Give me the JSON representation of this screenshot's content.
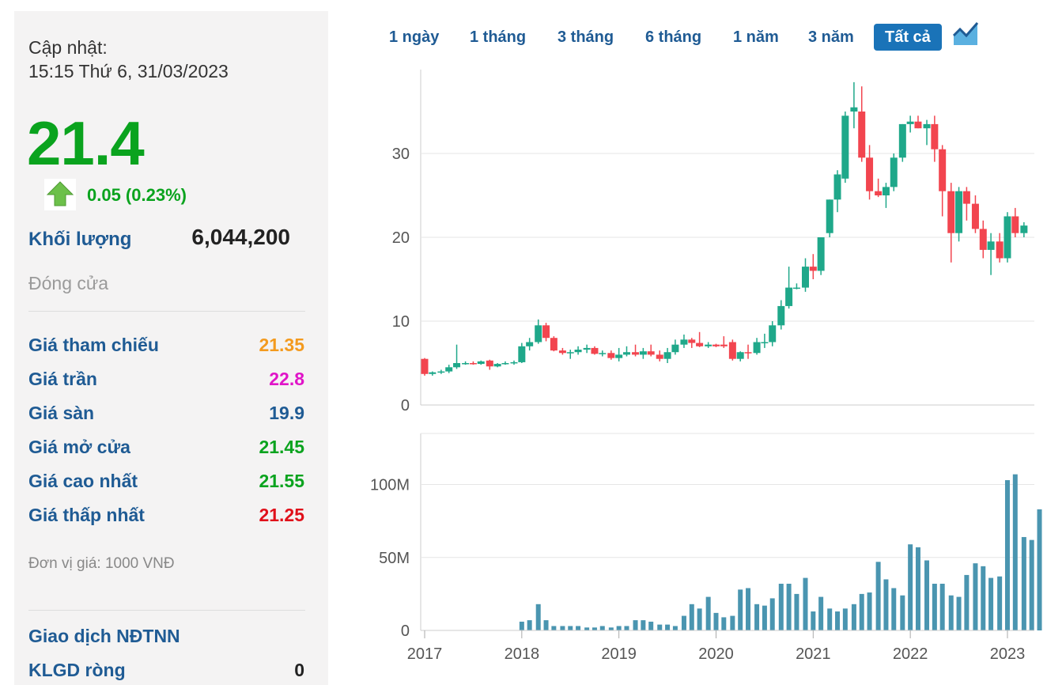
{
  "info": {
    "update_label": "Cập nhật:",
    "update_time": "15:15 Thứ 6, 31/03/2023",
    "price": "21.4",
    "change": "0.05 (0.23%)",
    "volume_label": "Khối lượng",
    "volume_value": "6,044,200",
    "status": "Đóng cửa",
    "rows": [
      {
        "label": "Giá tham chiếu",
        "value": "21.35",
        "color": "#f39a1e"
      },
      {
        "label": "Giá trần",
        "value": "22.8",
        "color": "#e014c8"
      },
      {
        "label": "Giá sàn",
        "value": "19.9",
        "color": "#1f5b94"
      },
      {
        "label": "Giá mở cửa",
        "value": "21.45",
        "color": "#0aa31e"
      },
      {
        "label": "Giá cao nhất",
        "value": "21.55",
        "color": "#0aa31e"
      },
      {
        "label": "Giá thấp nhất",
        "value": "21.25",
        "color": "#e0101a"
      }
    ],
    "unit_note": "Đơn vị giá: 1000 VNĐ",
    "foreign_title": "Giao dịch NĐTNN",
    "foreign_net_label": "KLGD ròng",
    "foreign_net_value": "0"
  },
  "tabs": [
    "1 ngày",
    "1 tháng",
    "3 tháng",
    "6 tháng",
    "1 năm",
    "3 năm",
    "Tất cả"
  ],
  "active_tab": "Tất cả",
  "colors": {
    "up": "#1fa88a",
    "down": "#f2454f",
    "volume": "#4a95b0",
    "grid": "#e6e6e6"
  },
  "chart_data": {
    "type": "candlestick",
    "price_axis": {
      "ticks": [
        0,
        10,
        20,
        30
      ],
      "ylim": [
        0,
        40
      ]
    },
    "volume_axis": {
      "ticks": [
        "0",
        "50M",
        "100M"
      ],
      "tick_values": [
        0,
        50,
        100
      ],
      "ylim": [
        0,
        135
      ],
      "unit": "M"
    },
    "x_axis": {
      "ticks": [
        "2017",
        "2018",
        "2019",
        "2020",
        "2021",
        "2022",
        "2023"
      ],
      "range": [
        2017,
        2023.22
      ]
    },
    "candles": [
      {
        "t": 2017.0,
        "o": 5.5,
        "h": 5.6,
        "l": 3.5,
        "c": 3.7
      },
      {
        "t": 2017.08,
        "o": 3.7,
        "h": 4.0,
        "l": 3.5,
        "c": 3.9
      },
      {
        "t": 2017.17,
        "o": 3.9,
        "h": 4.2,
        "l": 3.7,
        "c": 4.0
      },
      {
        "t": 2017.25,
        "o": 4.0,
        "h": 4.8,
        "l": 3.8,
        "c": 4.5
      },
      {
        "t": 2017.33,
        "o": 4.5,
        "h": 7.2,
        "l": 4.3,
        "c": 5.0
      },
      {
        "t": 2017.42,
        "o": 5.0,
        "h": 5.2,
        "l": 4.8,
        "c": 5.0
      },
      {
        "t": 2017.5,
        "o": 5.0,
        "h": 5.2,
        "l": 4.8,
        "c": 4.9
      },
      {
        "t": 2017.58,
        "o": 4.9,
        "h": 5.3,
        "l": 4.8,
        "c": 5.2
      },
      {
        "t": 2017.67,
        "o": 5.3,
        "h": 5.4,
        "l": 4.2,
        "c": 4.6
      },
      {
        "t": 2017.75,
        "o": 4.6,
        "h": 5.0,
        "l": 4.5,
        "c": 4.9
      },
      {
        "t": 2017.83,
        "o": 4.9,
        "h": 5.2,
        "l": 4.8,
        "c": 5.0
      },
      {
        "t": 2017.92,
        "o": 5.0,
        "h": 5.3,
        "l": 4.8,
        "c": 5.1
      },
      {
        "t": 2018.0,
        "o": 5.1,
        "h": 7.4,
        "l": 5.0,
        "c": 7.0
      },
      {
        "t": 2018.08,
        "o": 7.0,
        "h": 8.0,
        "l": 6.5,
        "c": 7.5
      },
      {
        "t": 2018.17,
        "o": 7.5,
        "h": 10.2,
        "l": 7.3,
        "c": 9.5
      },
      {
        "t": 2018.25,
        "o": 9.5,
        "h": 9.8,
        "l": 7.6,
        "c": 8.0
      },
      {
        "t": 2018.33,
        "o": 8.0,
        "h": 8.2,
        "l": 6.4,
        "c": 6.5
      },
      {
        "t": 2018.42,
        "o": 6.5,
        "h": 6.8,
        "l": 6.0,
        "c": 6.2
      },
      {
        "t": 2018.5,
        "o": 6.2,
        "h": 6.6,
        "l": 5.5,
        "c": 6.3
      },
      {
        "t": 2018.58,
        "o": 6.3,
        "h": 7.0,
        "l": 6.0,
        "c": 6.6
      },
      {
        "t": 2018.67,
        "o": 6.6,
        "h": 7.2,
        "l": 6.2,
        "c": 6.8
      },
      {
        "t": 2018.75,
        "o": 6.8,
        "h": 7.0,
        "l": 6.0,
        "c": 6.1
      },
      {
        "t": 2018.83,
        "o": 6.1,
        "h": 6.5,
        "l": 5.8,
        "c": 6.2
      },
      {
        "t": 2018.92,
        "o": 6.2,
        "h": 6.5,
        "l": 5.4,
        "c": 5.6
      },
      {
        "t": 2019.0,
        "o": 5.6,
        "h": 6.8,
        "l": 5.2,
        "c": 6.0
      },
      {
        "t": 2019.08,
        "o": 6.0,
        "h": 7.0,
        "l": 5.8,
        "c": 6.3
      },
      {
        "t": 2019.17,
        "o": 6.3,
        "h": 7.2,
        "l": 5.8,
        "c": 6.0
      },
      {
        "t": 2019.25,
        "o": 6.0,
        "h": 6.8,
        "l": 5.5,
        "c": 6.4
      },
      {
        "t": 2019.33,
        "o": 6.4,
        "h": 7.2,
        "l": 5.8,
        "c": 6.0
      },
      {
        "t": 2019.42,
        "o": 6.0,
        "h": 6.5,
        "l": 5.2,
        "c": 5.5
      },
      {
        "t": 2019.5,
        "o": 5.5,
        "h": 6.8,
        "l": 5.0,
        "c": 6.3
      },
      {
        "t": 2019.58,
        "o": 6.3,
        "h": 7.8,
        "l": 6.0,
        "c": 7.2
      },
      {
        "t": 2019.67,
        "o": 7.2,
        "h": 8.4,
        "l": 6.8,
        "c": 7.8
      },
      {
        "t": 2019.75,
        "o": 7.8,
        "h": 8.0,
        "l": 6.8,
        "c": 7.4
      },
      {
        "t": 2019.83,
        "o": 7.4,
        "h": 8.7,
        "l": 6.9,
        "c": 7.0
      },
      {
        "t": 2019.92,
        "o": 7.0,
        "h": 7.5,
        "l": 6.8,
        "c": 7.2
      },
      {
        "t": 2020.0,
        "o": 7.2,
        "h": 7.3,
        "l": 6.9,
        "c": 7.0
      },
      {
        "t": 2020.08,
        "o": 7.2,
        "h": 8.2,
        "l": 6.8,
        "c": 7.0
      },
      {
        "t": 2020.17,
        "o": 7.5,
        "h": 7.8,
        "l": 5.3,
        "c": 5.5
      },
      {
        "t": 2020.25,
        "o": 5.5,
        "h": 6.4,
        "l": 5.2,
        "c": 6.3
      },
      {
        "t": 2020.33,
        "o": 6.3,
        "h": 7.2,
        "l": 5.5,
        "c": 6.2
      },
      {
        "t": 2020.42,
        "o": 6.2,
        "h": 8.0,
        "l": 6.0,
        "c": 7.5
      },
      {
        "t": 2020.5,
        "o": 7.5,
        "h": 8.5,
        "l": 6.8,
        "c": 7.5
      },
      {
        "t": 2020.58,
        "o": 7.5,
        "h": 10.0,
        "l": 7.0,
        "c": 9.5
      },
      {
        "t": 2020.67,
        "o": 9.5,
        "h": 12.5,
        "l": 9.0,
        "c": 11.8
      },
      {
        "t": 2020.75,
        "o": 11.8,
        "h": 16.5,
        "l": 11.5,
        "c": 14.0
      },
      {
        "t": 2020.83,
        "o": 14.0,
        "h": 14.5,
        "l": 13.8,
        "c": 14.0
      },
      {
        "t": 2020.92,
        "o": 14.0,
        "h": 17.5,
        "l": 13.5,
        "c": 16.5
      },
      {
        "t": 2021.0,
        "o": 16.5,
        "h": 18.0,
        "l": 15.0,
        "c": 16.0
      },
      {
        "t": 2021.08,
        "o": 16.0,
        "h": 20.0,
        "l": 15.5,
        "c": 20.0
      },
      {
        "t": 2021.17,
        "o": 20.5,
        "h": 24.5,
        "l": 20.0,
        "c": 24.5
      },
      {
        "t": 2021.25,
        "o": 24.5,
        "h": 28.0,
        "l": 23.0,
        "c": 27.5
      },
      {
        "t": 2021.33,
        "o": 27.0,
        "h": 35.0,
        "l": 26.5,
        "c": 34.5
      },
      {
        "t": 2021.42,
        "o": 35.0,
        "h": 38.5,
        "l": 33.0,
        "c": 35.5
      },
      {
        "t": 2021.5,
        "o": 35.0,
        "h": 38.0,
        "l": 29.0,
        "c": 29.5
      },
      {
        "t": 2021.58,
        "o": 29.5,
        "h": 31.0,
        "l": 24.5,
        "c": 25.5
      },
      {
        "t": 2021.67,
        "o": 25.5,
        "h": 27.0,
        "l": 24.8,
        "c": 25.0
      },
      {
        "t": 2021.75,
        "o": 25.0,
        "h": 26.5,
        "l": 23.5,
        "c": 26.0
      },
      {
        "t": 2021.83,
        "o": 26.0,
        "h": 30.0,
        "l": 25.5,
        "c": 29.5
      },
      {
        "t": 2021.92,
        "o": 29.5,
        "h": 33.5,
        "l": 29.0,
        "c": 33.5
      },
      {
        "t": 2022.0,
        "o": 33.5,
        "h": 34.5,
        "l": 32.5,
        "c": 33.8
      },
      {
        "t": 2022.08,
        "o": 33.8,
        "h": 34.5,
        "l": 33.0,
        "c": 33.0
      },
      {
        "t": 2022.17,
        "o": 33.0,
        "h": 34.0,
        "l": 31.0,
        "c": 33.5
      },
      {
        "t": 2022.25,
        "o": 33.5,
        "h": 34.5,
        "l": 29.0,
        "c": 30.5
      },
      {
        "t": 2022.33,
        "o": 30.5,
        "h": 31.0,
        "l": 22.5,
        "c": 25.5
      },
      {
        "t": 2022.42,
        "o": 25.5,
        "h": 26.5,
        "l": 17.0,
        "c": 20.5
      },
      {
        "t": 2022.5,
        "o": 20.5,
        "h": 26.0,
        "l": 19.5,
        "c": 25.5
      },
      {
        "t": 2022.58,
        "o": 25.5,
        "h": 26.0,
        "l": 22.0,
        "c": 24.0
      },
      {
        "t": 2022.67,
        "o": 24.0,
        "h": 25.0,
        "l": 20.5,
        "c": 21.0
      },
      {
        "t": 2022.75,
        "o": 21.0,
        "h": 22.0,
        "l": 17.5,
        "c": 18.5
      },
      {
        "t": 2022.83,
        "o": 18.5,
        "h": 20.5,
        "l": 15.5,
        "c": 19.5
      },
      {
        "t": 2022.92,
        "o": 19.5,
        "h": 20.5,
        "l": 17.0,
        "c": 17.5
      },
      {
        "t": 2023.0,
        "o": 17.5,
        "h": 23.0,
        "l": 17.0,
        "c": 22.5
      },
      {
        "t": 2023.08,
        "o": 22.5,
        "h": 23.5,
        "l": 20.0,
        "c": 20.5
      },
      {
        "t": 2023.17,
        "o": 20.5,
        "h": 21.8,
        "l": 20.0,
        "c": 21.4
      }
    ],
    "volume": [
      {
        "t": 2018.0,
        "v": 6
      },
      {
        "t": 2018.08,
        "v": 7
      },
      {
        "t": 2018.17,
        "v": 18
      },
      {
        "t": 2018.25,
        "v": 7
      },
      {
        "t": 2018.33,
        "v": 3
      },
      {
        "t": 2018.42,
        "v": 3
      },
      {
        "t": 2018.5,
        "v": 3
      },
      {
        "t": 2018.58,
        "v": 3
      },
      {
        "t": 2018.67,
        "v": 2
      },
      {
        "t": 2018.75,
        "v": 2
      },
      {
        "t": 2018.83,
        "v": 3
      },
      {
        "t": 2018.92,
        "v": 2
      },
      {
        "t": 2019.0,
        "v": 3
      },
      {
        "t": 2019.08,
        "v": 3
      },
      {
        "t": 2019.17,
        "v": 7
      },
      {
        "t": 2019.25,
        "v": 7
      },
      {
        "t": 2019.33,
        "v": 6
      },
      {
        "t": 2019.42,
        "v": 4
      },
      {
        "t": 2019.5,
        "v": 4
      },
      {
        "t": 2019.58,
        "v": 3
      },
      {
        "t": 2019.67,
        "v": 10
      },
      {
        "t": 2019.75,
        "v": 18
      },
      {
        "t": 2019.83,
        "v": 15
      },
      {
        "t": 2019.92,
        "v": 23
      },
      {
        "t": 2020.0,
        "v": 12
      },
      {
        "t": 2020.08,
        "v": 9
      },
      {
        "t": 2020.17,
        "v": 10
      },
      {
        "t": 2020.25,
        "v": 28
      },
      {
        "t": 2020.33,
        "v": 29
      },
      {
        "t": 2020.42,
        "v": 18
      },
      {
        "t": 2020.5,
        "v": 17
      },
      {
        "t": 2020.58,
        "v": 22
      },
      {
        "t": 2020.67,
        "v": 32
      },
      {
        "t": 2020.75,
        "v": 32
      },
      {
        "t": 2020.83,
        "v": 25
      },
      {
        "t": 2020.92,
        "v": 36
      },
      {
        "t": 2021.0,
        "v": 13
      },
      {
        "t": 2021.08,
        "v": 23
      },
      {
        "t": 2021.17,
        "v": 15
      },
      {
        "t": 2021.25,
        "v": 13
      },
      {
        "t": 2021.33,
        "v": 15
      },
      {
        "t": 2021.42,
        "v": 18
      },
      {
        "t": 2021.5,
        "v": 25
      },
      {
        "t": 2021.58,
        "v": 26
      },
      {
        "t": 2021.67,
        "v": 47
      },
      {
        "t": 2021.75,
        "v": 35
      },
      {
        "t": 2021.83,
        "v": 29
      },
      {
        "t": 2021.92,
        "v": 24
      },
      {
        "t": 2022.0,
        "v": 59
      },
      {
        "t": 2022.08,
        "v": 57
      },
      {
        "t": 2022.17,
        "v": 48
      },
      {
        "t": 2022.25,
        "v": 32
      },
      {
        "t": 2022.33,
        "v": 32
      },
      {
        "t": 2022.42,
        "v": 24
      },
      {
        "t": 2022.5,
        "v": 23
      },
      {
        "t": 2022.58,
        "v": 38
      },
      {
        "t": 2022.67,
        "v": 46
      },
      {
        "t": 2022.75,
        "v": 44
      },
      {
        "t": 2022.83,
        "v": 36
      },
      {
        "t": 2022.92,
        "v": 37
      },
      {
        "t": 2023.0,
        "v": 103
      },
      {
        "t": 2023.08,
        "v": 107
      },
      {
        "t": 2023.17,
        "v": 64
      },
      {
        "t": 2023.25,
        "v": 62
      },
      {
        "t": 2023.33,
        "v": 83
      }
    ]
  }
}
